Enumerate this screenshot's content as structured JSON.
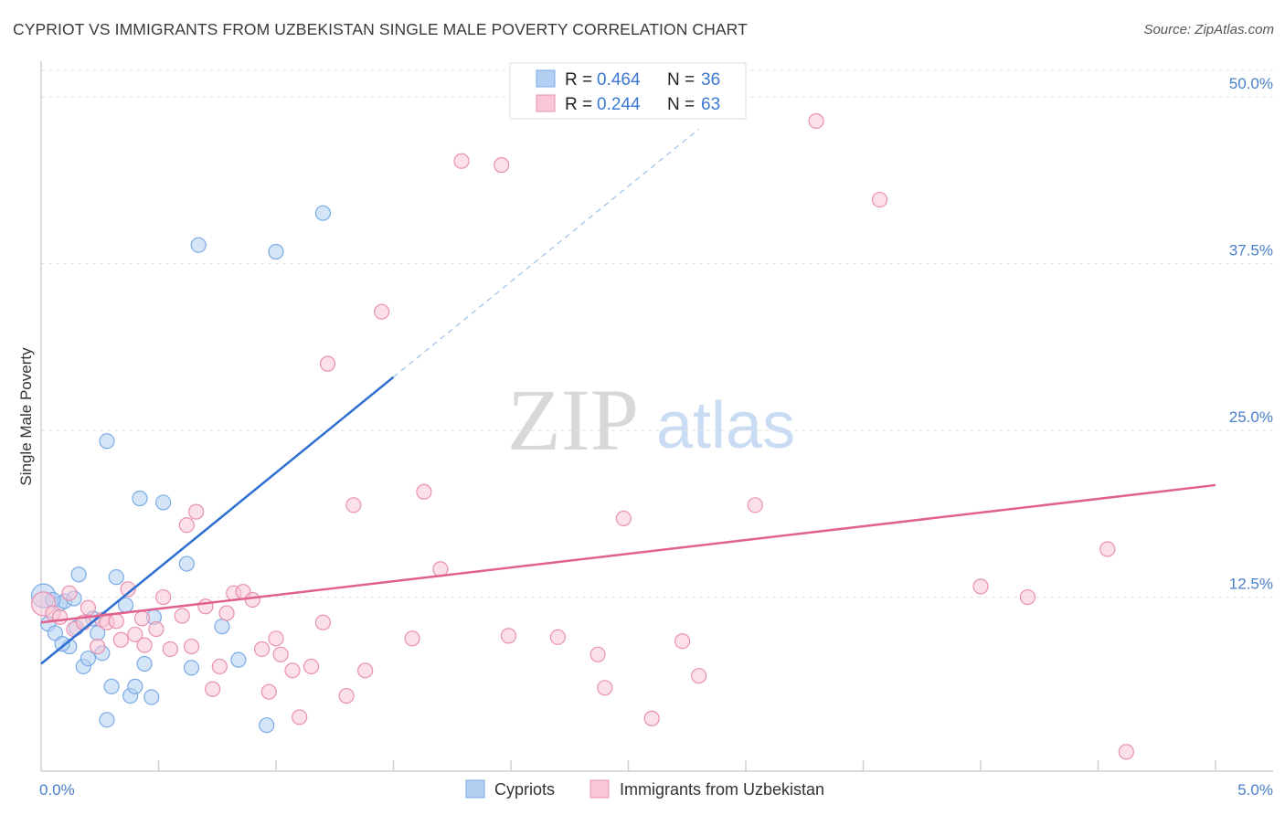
{
  "title": "CYPRIOT VS IMMIGRANTS FROM UZBEKISTAN SINGLE MALE POVERTY CORRELATION CHART",
  "source": "Source: ZipAtlas.com",
  "watermark": {
    "zip": "ZIP",
    "atlas": "atlas"
  },
  "legend": {
    "rows": [
      {
        "r_label": "R =",
        "r_value": "0.464",
        "n_label": "N =",
        "n_value": "36"
      },
      {
        "r_label": "R =",
        "r_value": "0.244",
        "n_label": "N =",
        "n_value": "63"
      }
    ]
  },
  "bottom_legend": [
    "Cypriots",
    "Immigrants from Uzbekistan"
  ],
  "chart_data": {
    "type": "scatter",
    "title": "CYPRIOT VS IMMIGRANTS FROM UZBEKISTAN SINGLE MALE POVERTY CORRELATION CHART",
    "xlabel": "",
    "ylabel": "Single Male Poverty",
    "xlim": [
      0,
      5
    ],
    "ylim": [
      0,
      52
    ],
    "x_ticks": [
      {
        "value": 0,
        "label": "0.0%"
      },
      {
        "value": 5,
        "label": "5.0%"
      }
    ],
    "y_ticks": [
      {
        "value": 12.5,
        "label": "12.5%"
      },
      {
        "value": 25,
        "label": "25.0%"
      },
      {
        "value": 37.5,
        "label": "37.5%"
      },
      {
        "value": 50,
        "label": "50.0%"
      }
    ],
    "series": [
      {
        "name": "Cypriots",
        "color": "#7aaae6",
        "fill": "#b3cff2",
        "trend_color": "#2d6fd0",
        "trend": {
          "x0": 0,
          "y0": 7.5,
          "x1": 1.5,
          "y1": 29.0,
          "dash_to_x": 2.8,
          "dash_to_y": 47.6
        },
        "points": [
          [
            0.01,
            12.6,
            1
          ],
          [
            0.03,
            10.5,
            0
          ],
          [
            0.06,
            9.8,
            0
          ],
          [
            0.08,
            12.0,
            0
          ],
          [
            0.1,
            12.2,
            0
          ],
          [
            0.12,
            8.8,
            0
          ],
          [
            0.14,
            12.4,
            0
          ],
          [
            0.16,
            14.2,
            0
          ],
          [
            0.18,
            7.3,
            0
          ],
          [
            0.2,
            7.9,
            0
          ],
          [
            0.22,
            10.9,
            0
          ],
          [
            0.24,
            9.8,
            0
          ],
          [
            0.26,
            8.3,
            0
          ],
          [
            0.3,
            5.8,
            0
          ],
          [
            0.32,
            14.0,
            0
          ],
          [
            0.36,
            11.9,
            0
          ],
          [
            0.38,
            5.1,
            0
          ],
          [
            0.4,
            5.8,
            0
          ],
          [
            0.42,
            19.9,
            0
          ],
          [
            0.44,
            7.5,
            0
          ],
          [
            0.47,
            5.0,
            0
          ],
          [
            0.48,
            11.0,
            0
          ],
          [
            0.52,
            19.6,
            0
          ],
          [
            0.62,
            15.0,
            0
          ],
          [
            0.64,
            7.2,
            0
          ],
          [
            0.67,
            38.9,
            0
          ],
          [
            0.77,
            10.3,
            0
          ],
          [
            0.84,
            7.8,
            0
          ],
          [
            1.0,
            38.4,
            0
          ],
          [
            1.2,
            41.3,
            0
          ],
          [
            0.28,
            24.2,
            0
          ],
          [
            0.96,
            2.9,
            0
          ],
          [
            0.28,
            3.3,
            0
          ],
          [
            0.05,
            12.3,
            0
          ],
          [
            0.09,
            9.0,
            0
          ],
          [
            0.15,
            10.2,
            0
          ]
        ]
      },
      {
        "name": "Immigrants from Uzbekistan",
        "color": "#e98fb0",
        "fill": "#f8c6d6",
        "trend_color": "#e0608e",
        "trend": {
          "x0": 0,
          "y0": 10.6,
          "x1": 5.0,
          "y1": 20.9
        },
        "points": [
          [
            0.01,
            12.0,
            1
          ],
          [
            0.05,
            11.3,
            0
          ],
          [
            0.08,
            11.0,
            0
          ],
          [
            0.12,
            12.8,
            0
          ],
          [
            0.14,
            10.1,
            0
          ],
          [
            0.18,
            10.6,
            0
          ],
          [
            0.2,
            11.7,
            0
          ],
          [
            0.24,
            8.8,
            0
          ],
          [
            0.26,
            10.8,
            0
          ],
          [
            0.28,
            10.6,
            0
          ],
          [
            0.32,
            10.7,
            0
          ],
          [
            0.34,
            9.3,
            0
          ],
          [
            0.37,
            13.1,
            0
          ],
          [
            0.4,
            9.7,
            0
          ],
          [
            0.43,
            10.9,
            0
          ],
          [
            0.44,
            8.9,
            0
          ],
          [
            0.49,
            10.1,
            0
          ],
          [
            0.52,
            12.5,
            0
          ],
          [
            0.55,
            8.6,
            0
          ],
          [
            0.6,
            11.1,
            0
          ],
          [
            0.62,
            17.9,
            0
          ],
          [
            0.64,
            8.8,
            0
          ],
          [
            0.66,
            18.9,
            0
          ],
          [
            0.7,
            11.8,
            0
          ],
          [
            0.73,
            5.6,
            0
          ],
          [
            0.76,
            7.3,
            0
          ],
          [
            0.79,
            11.3,
            0
          ],
          [
            0.82,
            12.8,
            0
          ],
          [
            0.86,
            12.9,
            0
          ],
          [
            0.9,
            12.3,
            0
          ],
          [
            0.94,
            8.6,
            0
          ],
          [
            0.97,
            5.4,
            0
          ],
          [
            1.0,
            9.4,
            0
          ],
          [
            1.02,
            8.2,
            0
          ],
          [
            1.07,
            7.0,
            0
          ],
          [
            1.1,
            3.5,
            0
          ],
          [
            1.15,
            7.3,
            0
          ],
          [
            1.2,
            10.6,
            0
          ],
          [
            1.22,
            30.0,
            0
          ],
          [
            1.3,
            5.1,
            0
          ],
          [
            1.33,
            19.4,
            0
          ],
          [
            1.38,
            7.0,
            0
          ],
          [
            1.45,
            33.9,
            0
          ],
          [
            1.58,
            9.4,
            0
          ],
          [
            1.63,
            20.4,
            0
          ],
          [
            1.7,
            14.6,
            0
          ],
          [
            1.79,
            45.2,
            0
          ],
          [
            1.96,
            44.9,
            0
          ],
          [
            1.99,
            9.6,
            0
          ],
          [
            2.2,
            9.5,
            0
          ],
          [
            2.37,
            8.2,
            0
          ],
          [
            2.4,
            5.7,
            0
          ],
          [
            2.48,
            18.4,
            0
          ],
          [
            2.6,
            3.4,
            0
          ],
          [
            2.73,
            9.2,
            0
          ],
          [
            2.8,
            6.6,
            0
          ],
          [
            3.04,
            19.4,
            0
          ],
          [
            3.3,
            48.2,
            0
          ],
          [
            3.57,
            42.3,
            0
          ],
          [
            4.0,
            13.3,
            0
          ],
          [
            4.2,
            12.5,
            0
          ],
          [
            4.54,
            16.1,
            0
          ],
          [
            4.62,
            0.9,
            0
          ]
        ]
      }
    ],
    "grid": "horizontal-dashed",
    "legend_position": "top-center"
  }
}
